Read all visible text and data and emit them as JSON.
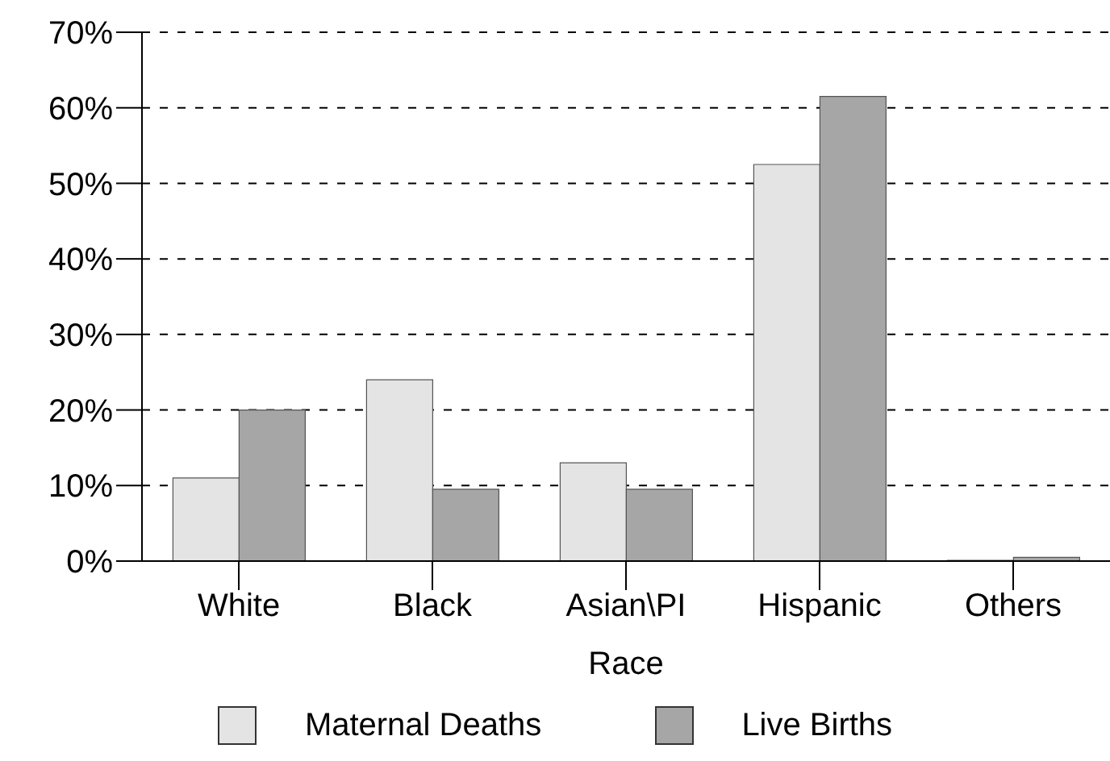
{
  "chart_data": {
    "type": "bar",
    "xlabel": "Race",
    "categories": [
      "White",
      "Black",
      "Asian\\PI",
      "Hispanic",
      "Others"
    ],
    "series": [
      {
        "name": "Maternal Deaths",
        "color": "#e4e4e4",
        "values": [
          11,
          24,
          13,
          52.5,
          0.1
        ]
      },
      {
        "name": "Live Births",
        "color": "#a6a6a6",
        "values": [
          20,
          9.5,
          9.5,
          61.5,
          0.5
        ]
      }
    ],
    "ylim": [
      0,
      70
    ],
    "yticks": [
      {
        "value": 0,
        "label": "0%"
      },
      {
        "value": 10,
        "label": "10%"
      },
      {
        "value": 20,
        "label": "20%"
      },
      {
        "value": 30,
        "label": "30%"
      },
      {
        "value": 40,
        "label": "40%"
      },
      {
        "value": 50,
        "label": "50%"
      },
      {
        "value": 60,
        "label": "60%"
      },
      {
        "value": 70,
        "label": "70%"
      }
    ],
    "grid": "y",
    "legend": "bottom"
  }
}
